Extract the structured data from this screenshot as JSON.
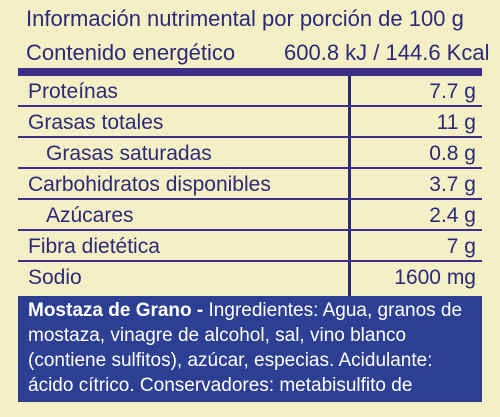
{
  "header": {
    "title": "Información nutrimental por porción de 100 g",
    "energy_label": "Contenido energético",
    "energy_value": "600.8 kJ / 144.6 Kcal"
  },
  "rows": [
    {
      "name": "Proteínas",
      "value": "7.7 g"
    },
    {
      "name": "Grasas totales",
      "value": "11 g"
    },
    {
      "name": "Grasas saturadas",
      "value": "0.8 g"
    },
    {
      "name": "Carbohidratos disponibles",
      "value": "3.7 g"
    },
    {
      "name": "Azúcares",
      "value": "2.4 g"
    },
    {
      "name": "Fibra dietética",
      "value": "7 g"
    },
    {
      "name": "Sodio",
      "value": "1600 mg"
    }
  ],
  "ingredients": {
    "brand": "Mostaza de Grano -",
    "text": " Ingredientes: Agua, granos de mostaza, vinagre de alcohol, sal, vino blanco (contiene sulfitos), azúcar, especias. Acidulante: ácido cítrico. Conservadores: metabisulfito de potasio."
  },
  "colors": {
    "background": "#f4efc4",
    "ink": "#2b2a7a",
    "panel": "#2d3f93"
  }
}
